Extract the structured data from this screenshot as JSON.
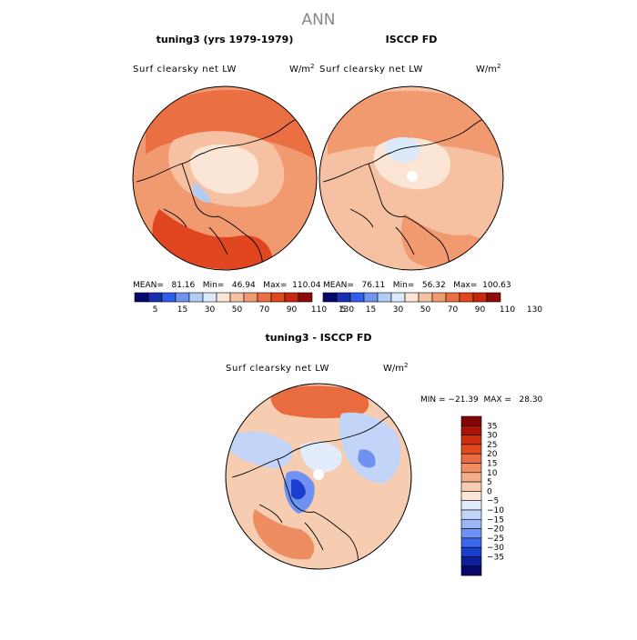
{
  "figure": {
    "title": "ANN",
    "panel1_title": "tuning3 (yrs 1979-1979)",
    "panel2_title": "ISCCP FD",
    "panel3_title": "tuning3 - ISCCP FD",
    "variable": "Surf clearsky net LW",
    "units": "W/m",
    "units_exp": "2"
  },
  "panel1": {
    "stats": "MEAN=   81.16   Min=   46.94   Max=  110.04"
  },
  "panel2": {
    "stats": "MEAN=   76.11   Min=   56.32   Max=  100.63"
  },
  "panel3": {
    "stats": "MIN = −21.39  MAX =   28.30"
  },
  "colors": {
    "abs_scale": [
      "#08086b",
      "#1730b0",
      "#2f5fe8",
      "#6f95f0",
      "#b3ccf5",
      "#dce9fb",
      "#fbe5d4",
      "#f6c1a3",
      "#f19a70",
      "#ea6f43",
      "#e04620",
      "#c5280f",
      "#8c0a0a"
    ],
    "diff_scale": [
      "#08086b",
      "#0d1f9c",
      "#1a3fcf",
      "#3c66ec",
      "#6e91f2",
      "#9ab4f6",
      "#c3d4f9",
      "#e3ecfc",
      "#fbe5d4",
      "#f7cdb2",
      "#f3ad88",
      "#ee8d62",
      "#e86c3f",
      "#df4a1f",
      "#cc2e0e",
      "#a91408",
      "#800606"
    ]
  },
  "chart_data": [
    {
      "type": "heatmap",
      "title": "tuning3 (yrs 1979-1979)",
      "variable": "Surf clearsky net LW",
      "units": "W/m2",
      "projection": "polar stereographic (North Pole)",
      "stats": {
        "mean": 81.16,
        "min": 46.94,
        "max": 110.04
      },
      "colorbar_labels": [
        "5",
        "15",
        "30",
        "50",
        "70",
        "90",
        "110",
        "130"
      ],
      "contour_levels": [
        5,
        15,
        20,
        30,
        40,
        50,
        60,
        70,
        80,
        90,
        100,
        110,
        120,
        130
      ]
    },
    {
      "type": "heatmap",
      "title": "ISCCP FD",
      "variable": "Surf clearsky net LW",
      "units": "W/m2",
      "projection": "polar stereographic (North Pole)",
      "stats": {
        "mean": 76.11,
        "min": 56.32,
        "max": 100.63
      },
      "colorbar_labels": [
        "5",
        "15",
        "30",
        "50",
        "70",
        "90",
        "110",
        "130"
      ],
      "contour_levels": [
        5,
        15,
        20,
        30,
        40,
        50,
        60,
        70,
        80,
        90,
        100,
        110,
        120,
        130
      ]
    },
    {
      "type": "heatmap",
      "title": "tuning3 - ISCCP FD",
      "variable": "Surf clearsky net LW",
      "units": "W/m2",
      "projection": "polar stereographic (North Pole)",
      "stats": {
        "min": -21.39,
        "max": 28.3
      },
      "colorbar_labels": [
        "35",
        "30",
        "25",
        "20",
        "15",
        "10",
        "5",
        "0",
        "−5",
        "−10",
        "−15",
        "−20",
        "−25",
        "−30",
        "−35"
      ],
      "contour_levels": [
        -35,
        -30,
        -25,
        -20,
        -15,
        -10,
        -5,
        0,
        5,
        10,
        15,
        20,
        25,
        30,
        35
      ]
    }
  ]
}
